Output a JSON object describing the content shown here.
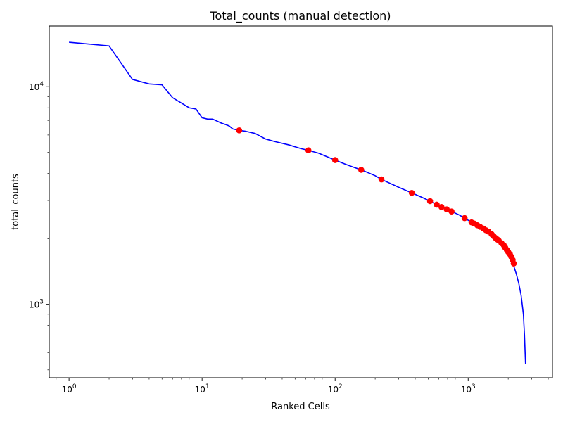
{
  "chart_data": {
    "type": "line",
    "title": "Total_counts (manual detection)",
    "xlabel": "Ranked Cells",
    "ylabel": "total_counts",
    "xscale": "log",
    "yscale": "log",
    "xlim": [
      0.71,
      4300
    ],
    "ylim": [
      460,
      19000
    ],
    "grid": false,
    "x_ticks": [
      {
        "value": 1,
        "base": "10",
        "exp": "0"
      },
      {
        "value": 10,
        "base": "10",
        "exp": "1"
      },
      {
        "value": 100,
        "base": "10",
        "exp": "2"
      },
      {
        "value": 1000,
        "base": "10",
        "exp": "3"
      }
    ],
    "y_ticks": [
      {
        "value": 1000,
        "base": "10",
        "exp": "3"
      },
      {
        "value": 10000,
        "base": "10",
        "exp": "4"
      }
    ],
    "series": [
      {
        "kind": "line",
        "color": "#0000ff",
        "x": [
          1,
          2,
          3,
          4,
          5,
          6,
          8,
          9,
          10,
          11,
          12,
          14,
          15,
          16,
          17,
          19,
          21,
          25,
          30,
          35,
          45,
          55,
          63,
          75,
          100,
          120,
          140,
          157,
          200,
          223,
          300,
          377,
          450,
          517,
          580,
          630,
          690,
          750,
          850,
          940,
          1050,
          1150,
          1300,
          1500,
          1700,
          1850,
          2000,
          2100,
          2200,
          2300,
          2400,
          2500,
          2600,
          2650,
          2700
        ],
        "y": [
          16000,
          15400,
          10800,
          10300,
          10200,
          8900,
          8000,
          7900,
          7200,
          7100,
          7100,
          6800,
          6700,
          6600,
          6400,
          6300,
          6250,
          6100,
          5750,
          5600,
          5400,
          5200,
          5100,
          4950,
          4600,
          4400,
          4250,
          4150,
          3900,
          3750,
          3450,
          3250,
          3100,
          2980,
          2870,
          2800,
          2730,
          2670,
          2580,
          2490,
          2390,
          2330,
          2220,
          2080,
          1960,
          1850,
          1720,
          1620,
          1500,
          1380,
          1250,
          1100,
          900,
          720,
          530
        ]
      },
      {
        "kind": "scatter",
        "color": "#ff0000",
        "x": [
          19,
          63,
          100,
          157,
          223,
          377,
          517,
          580,
          630,
          690,
          750,
          940,
          1060,
          1110,
          1170,
          1230,
          1300,
          1360,
          1420,
          1500,
          1550,
          1600,
          1650,
          1700,
          1780,
          1850,
          1900,
          1950,
          2000,
          2060,
          2100,
          2160,
          2200
        ],
        "y": [
          6300,
          5100,
          4600,
          4150,
          3750,
          3250,
          2980,
          2870,
          2800,
          2730,
          2670,
          2490,
          2380,
          2350,
          2310,
          2270,
          2230,
          2190,
          2160,
          2100,
          2060,
          2020,
          1990,
          1960,
          1910,
          1870,
          1820,
          1780,
          1740,
          1700,
          1660,
          1600,
          1540
        ]
      }
    ]
  }
}
